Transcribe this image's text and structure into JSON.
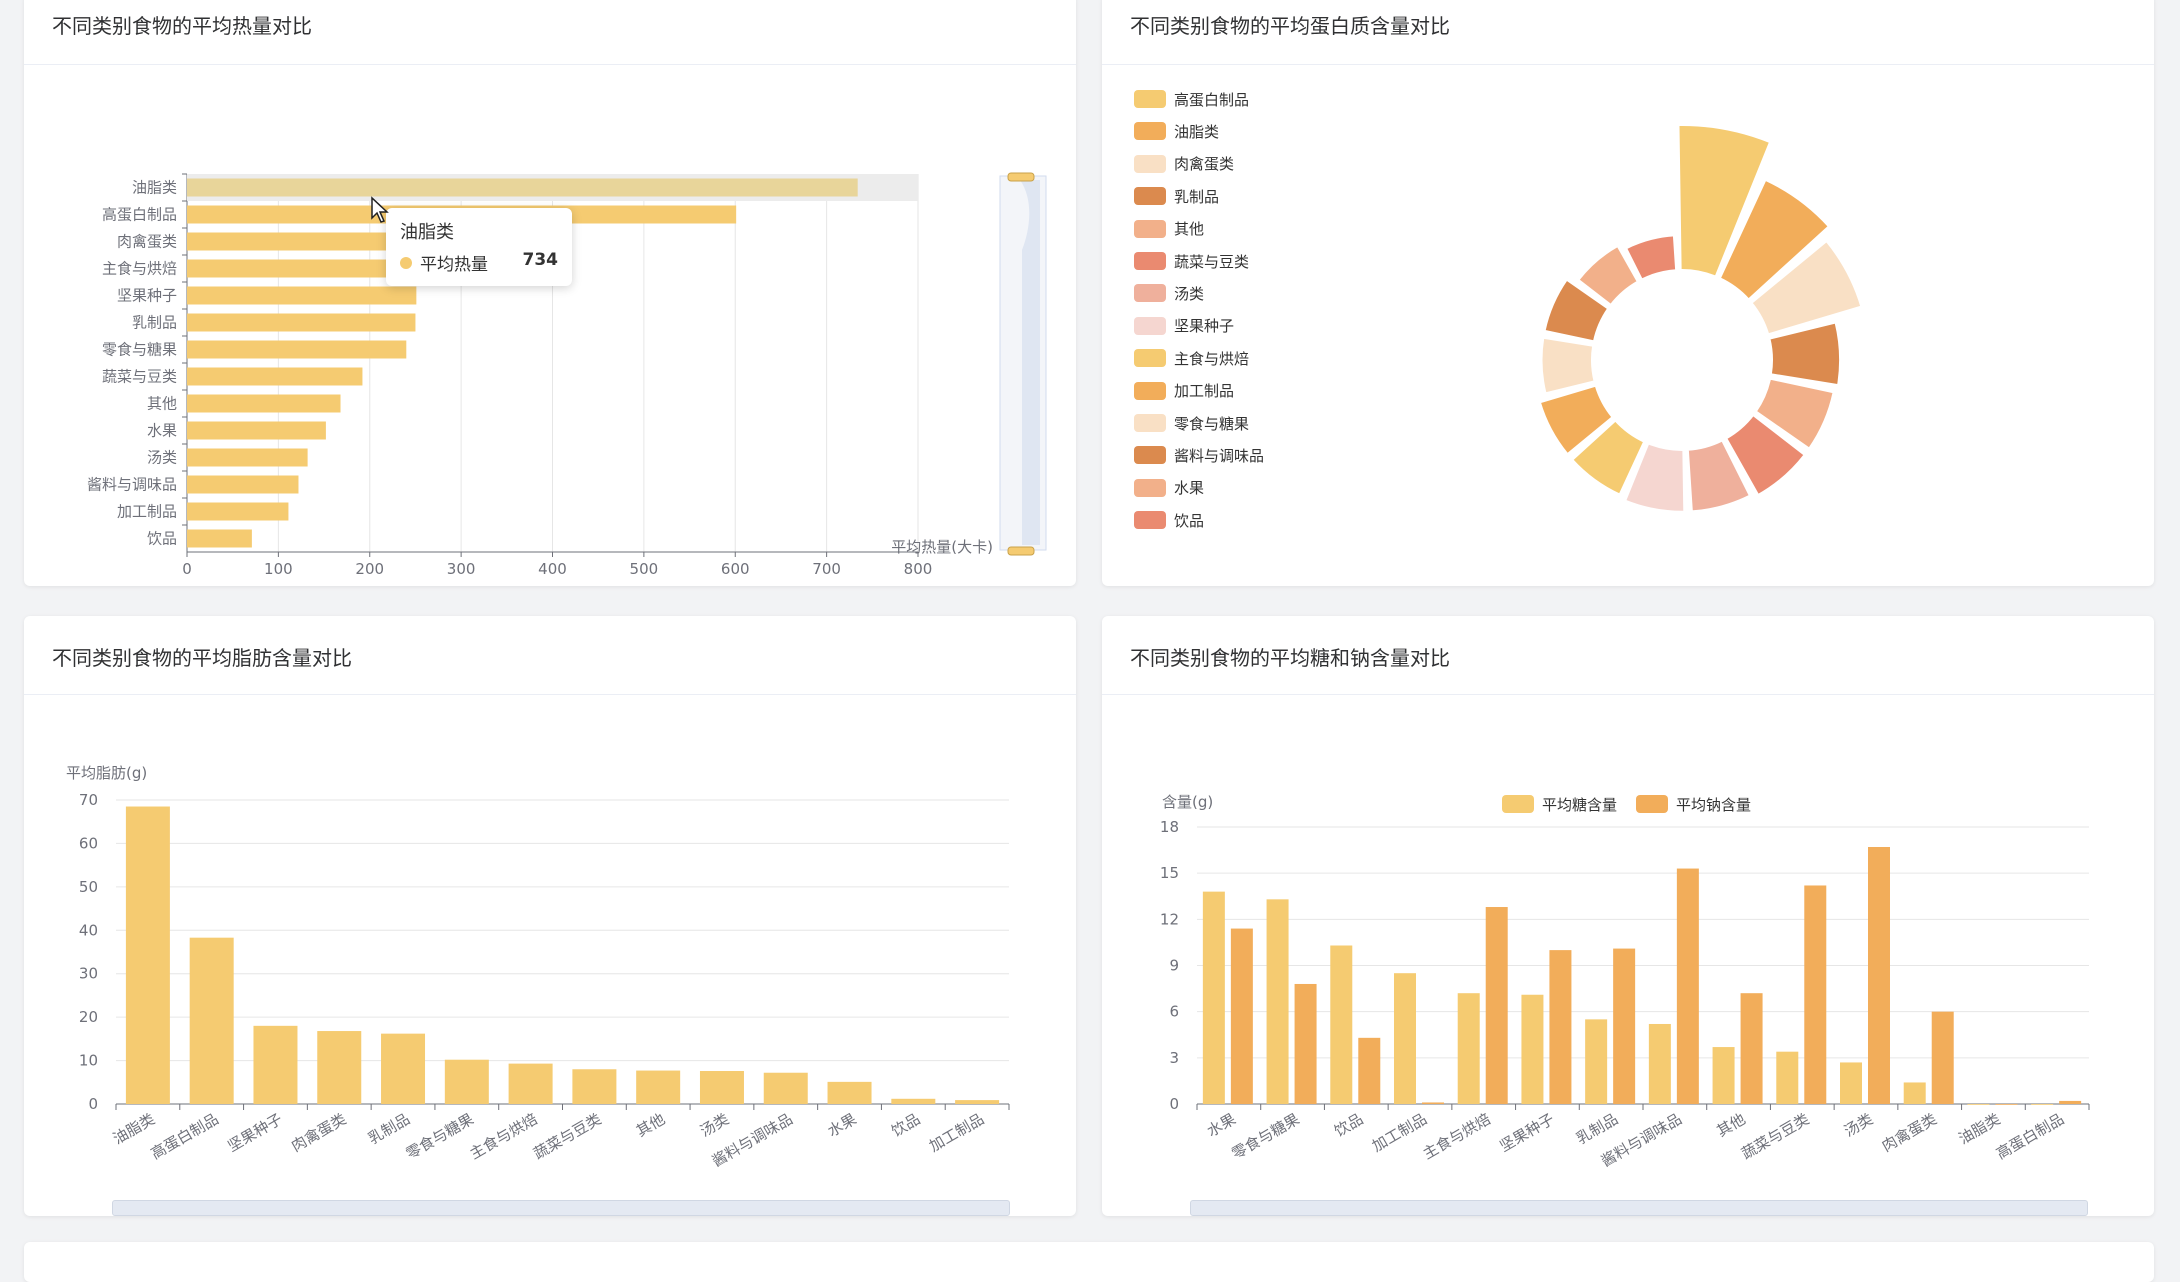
{
  "colors": {
    "series": [
      "#f5cb71",
      "#f2ad5a",
      "#f9e0c5",
      "#db8a4e",
      "#f2b08a",
      "#ea8a70",
      "#efb09c",
      "#f5d6d0"
    ],
    "sugar": "#f5cb71",
    "sodium": "#f2ad5a",
    "bar": "#f5cb71",
    "highlight": "#e8d59a"
  },
  "panels": [
    {
      "title": "不同类别食物的平均热量对比"
    },
    {
      "title": "不同类别食物的平均蛋白质含量对比"
    },
    {
      "title": "不同类别食物的平均脂肪含量对比"
    },
    {
      "title": "不同类别食物的平均糖和钠含量对比"
    }
  ],
  "tooltip": {
    "title": "油脂类",
    "series_name": "平均热量",
    "value": "734"
  },
  "chart_data": [
    {
      "type": "bar",
      "orientation": "horizontal",
      "title": "不同类别食物的平均热量对比",
      "categories": [
        "油脂类",
        "高蛋白制品",
        "肉禽蛋类",
        "主食与烘焙",
        "坚果种子",
        "乳制品",
        "零食与糖果",
        "蔬菜与豆类",
        "其他",
        "水果",
        "汤类",
        "酱料与调味品",
        "加工制品",
        "饮品"
      ],
      "values": [
        734,
        601,
        262,
        258,
        251,
        250,
        240,
        192,
        168,
        152,
        132,
        122,
        111,
        71
      ],
      "xlabel": "平均热量(大卡)",
      "xlim": [
        0,
        800
      ],
      "xticks": [
        0,
        100,
        200,
        300,
        400,
        500,
        600,
        700,
        800
      ],
      "highlighted": "油脂类",
      "grid": true
    },
    {
      "type": "pie",
      "variant": "nightingale-rose",
      "title": "不同类别食物的平均蛋白质含量对比",
      "legend_position": "left",
      "categories": [
        "高蛋白制品",
        "油脂类",
        "肉禽蛋类",
        "乳制品",
        "其他",
        "蔬菜与豆类",
        "汤类",
        "坚果种子",
        "主食与烘焙",
        "加工制品",
        "零食与糖果",
        "酱料与调味品",
        "水果",
        "饮品"
      ],
      "values": [
        26,
        14,
        11,
        5,
        4.5,
        4.5,
        4,
        4,
        3.5,
        3.5,
        2.5,
        2.5,
        1.5,
        1
      ]
    },
    {
      "type": "bar",
      "title": "不同类别食物的平均脂肪含量对比",
      "ylabel": "平均脂肪(g)",
      "ylim": [
        0,
        70
      ],
      "yticks": [
        0,
        10,
        20,
        30,
        40,
        50,
        60,
        70
      ],
      "categories": [
        "油脂类",
        "高蛋白制品",
        "坚果种子",
        "肉禽蛋类",
        "乳制品",
        "零食与糖果",
        "主食与烘焙",
        "蔬菜与豆类",
        "其他",
        "汤类",
        "酱料与调味品",
        "水果",
        "饮品",
        "加工制品"
      ],
      "values": [
        68.5,
        38.3,
        18,
        16.8,
        16.2,
        10.2,
        9.3,
        8,
        7.7,
        7.6,
        7.2,
        5.1,
        1.2,
        0.9
      ],
      "grid": true
    },
    {
      "type": "bar",
      "title": "不同类别食物的平均糖和钠含量对比",
      "ylabel": "含量(g)",
      "ylim": [
        0,
        18
      ],
      "yticks": [
        0,
        3,
        6,
        9,
        12,
        15,
        18
      ],
      "legend_position": "top",
      "categories": [
        "水果",
        "零食与糖果",
        "饮品",
        "加工制品",
        "主食与烘焙",
        "坚果种子",
        "乳制品",
        "酱料与调味品",
        "其他",
        "蔬菜与豆类",
        "汤类",
        "肉禽蛋类",
        "油脂类",
        "高蛋白制品"
      ],
      "series": [
        {
          "name": "平均糖含量",
          "values": [
            13.8,
            13.3,
            10.3,
            8.5,
            7.2,
            7.1,
            5.5,
            5.2,
            3.7,
            3.4,
            2.7,
            1.4,
            0,
            0
          ]
        },
        {
          "name": "平均钠含量",
          "values": [
            11.4,
            7.8,
            4.3,
            0.1,
            12.8,
            10,
            10.1,
            15.3,
            7.2,
            14.2,
            16.7,
            6,
            0,
            0.2
          ]
        }
      ],
      "grid": true
    }
  ]
}
